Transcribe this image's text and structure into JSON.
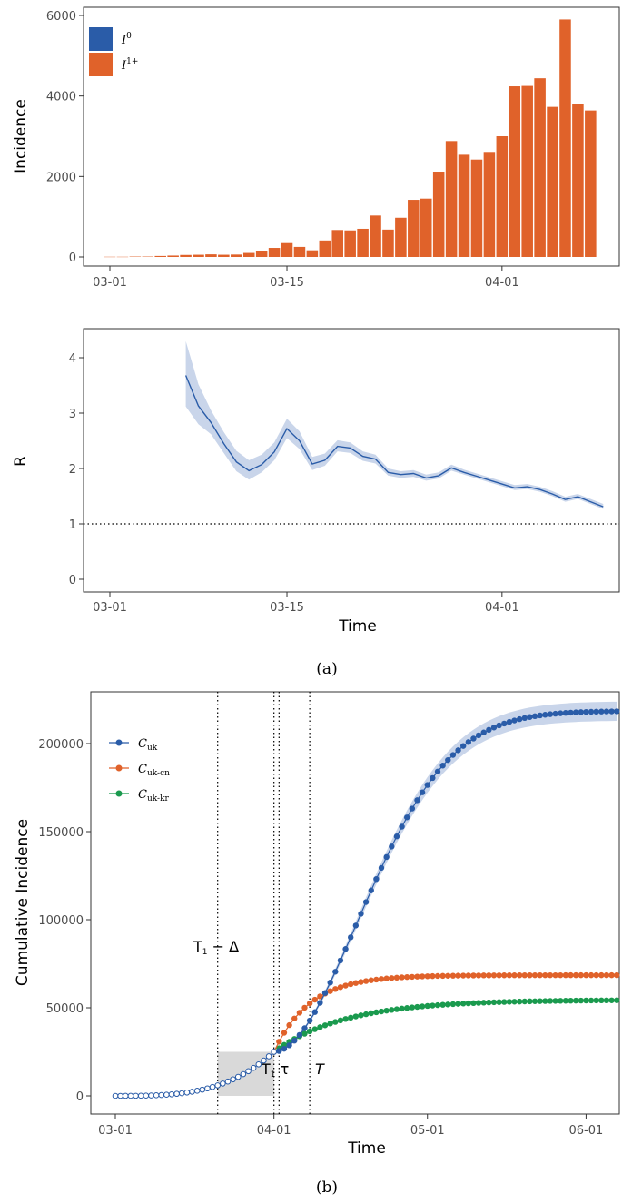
{
  "colors": {
    "blue": "#2a5ca8",
    "orange": "#e0622a",
    "green": "#1a9a4e",
    "ribbon": "#c9d5ea",
    "window": "#d9d9d9"
  },
  "panel_a": {
    "caption": "(a)",
    "x_ticks": [
      "03-01",
      "03-15",
      "04-01"
    ]
  },
  "panel_b": {
    "caption": "(b)"
  },
  "chart_data": [
    {
      "type": "bar",
      "ylabel": "Incidence",
      "ylim": [
        0,
        6000
      ],
      "yticks": [
        0,
        2000,
        4000,
        6000
      ],
      "x_start": "03-01",
      "xticks": [
        "03-01",
        "03-15",
        "04-01"
      ],
      "legend": {
        "position": "top-left",
        "entries": [
          {
            "main": "I",
            "sup": "0",
            "color": "blue"
          },
          {
            "main": "I",
            "sup": "1+",
            "color": "orange"
          }
        ]
      },
      "series": [
        {
          "name": "I1+",
          "values": [
            5,
            5,
            10,
            10,
            25,
            35,
            50,
            55,
            65,
            55,
            60,
            100,
            145,
            225,
            345,
            250,
            165,
            410,
            670,
            660,
            700,
            1030,
            680,
            975,
            1420,
            1450,
            2120,
            2880,
            2540,
            2420,
            2610,
            3000,
            4240,
            4250,
            4440,
            3730,
            5900,
            3800,
            3640
          ]
        }
      ]
    },
    {
      "type": "line",
      "xlabel": "Time",
      "ylabel": "R",
      "ylim": [
        0,
        4.5
      ],
      "yticks": [
        0,
        1,
        2,
        3,
        4
      ],
      "xticks": [
        "03-01",
        "03-15",
        "04-01"
      ],
      "reference_line": 1,
      "x_start_day": 6,
      "series": [
        {
          "name": "R",
          "values": [
            3.68,
            3.13,
            2.83,
            2.45,
            2.12,
            1.96,
            2.07,
            2.3,
            2.72,
            2.5,
            2.08,
            2.15,
            2.4,
            2.37,
            2.22,
            2.17,
            1.93,
            1.89,
            1.91,
            1.83,
            1.87,
            2.01,
            1.93,
            1.86,
            1.79,
            1.72,
            1.65,
            1.67,
            1.62,
            1.54,
            1.44,
            1.49,
            1.4,
            1.31
          ],
          "lower": [
            3.12,
            2.8,
            2.62,
            2.28,
            1.95,
            1.8,
            1.93,
            2.15,
            2.55,
            2.35,
            1.97,
            2.05,
            2.31,
            2.28,
            2.14,
            2.09,
            1.87,
            1.83,
            1.85,
            1.78,
            1.82,
            1.96,
            1.89,
            1.82,
            1.75,
            1.68,
            1.61,
            1.63,
            1.58,
            1.5,
            1.4,
            1.45,
            1.36,
            1.27
          ],
          "upper": [
            4.3,
            3.52,
            3.05,
            2.66,
            2.32,
            2.15,
            2.25,
            2.47,
            2.9,
            2.67,
            2.21,
            2.27,
            2.51,
            2.47,
            2.31,
            2.25,
            2.0,
            1.95,
            1.97,
            1.89,
            1.93,
            2.07,
            1.98,
            1.91,
            1.84,
            1.77,
            1.7,
            1.72,
            1.67,
            1.59,
            1.49,
            1.54,
            1.45,
            1.36
          ]
        }
      ]
    },
    {
      "type": "line",
      "xlabel": "Time",
      "ylabel": "Cumulative Incidence",
      "ylim": [
        0,
        225000
      ],
      "yticks": [
        0,
        50000,
        100000,
        150000,
        200000
      ],
      "xticks": [
        "03-01",
        "04-01",
        "05-01",
        "06-01"
      ],
      "legend": {
        "position": "top-left",
        "entries": [
          {
            "main": "C",
            "sub": "uk",
            "color": "blue"
          },
          {
            "main": "C",
            "sub": "uk-cn",
            "color": "orange"
          },
          {
            "main": "C",
            "sub": "uk-kr",
            "color": "green"
          }
        ]
      },
      "observed_cumulative_start_day": 0,
      "observed_cumulative_end_day": 31,
      "projection_start_day": 32,
      "projection_end_day": 98,
      "uk_final": 218500,
      "cn_final": 68500,
      "kr_final": 54500,
      "observed_start_value": 25000,
      "annotations": [
        {
          "label": "T",
          "sub": "1",
          "suffix": " − Δ",
          "day": 20
        },
        {
          "label": "T",
          "sub": "1",
          "suffix": " τ",
          "day": 31
        },
        {
          "label": "T",
          "sub": "",
          "suffix": "",
          "day": 38
        }
      ],
      "vlines_days": [
        20,
        31,
        32,
        38
      ],
      "window": {
        "x_start_day": 20,
        "x_end_day": 31,
        "y_top": 25000
      }
    }
  ]
}
